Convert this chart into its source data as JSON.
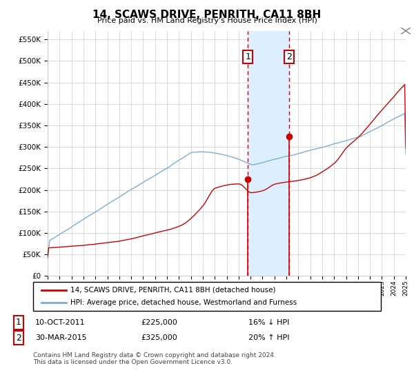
{
  "title": "14, SCAWS DRIVE, PENRITH, CA11 8BH",
  "subtitle": "Price paid vs. HM Land Registry's House Price Index (HPI)",
  "legend_line1": "14, SCAWS DRIVE, PENRITH, CA11 8BH (detached house)",
  "legend_line2": "HPI: Average price, detached house, Westmorland and Furness",
  "annotation1_date": "10-OCT-2011",
  "annotation1_price": 225000,
  "annotation1_note": "16% ↓ HPI",
  "annotation2_date": "30-MAR-2015",
  "annotation2_price": 325000,
  "annotation2_note": "20% ↑ HPI",
  "footer": "Contains HM Land Registry data © Crown copyright and database right 2024.\nThis data is licensed under the Open Government Licence v3.0.",
  "hpi_color": "#7aadd4",
  "price_color": "#cc0000",
  "dashed_line_color": "#cc0000",
  "shade_color": "#ddeeff",
  "grid_color": "#cccccc",
  "background_color": "#ffffff",
  "ylim": [
    0,
    570000
  ],
  "yticks": [
    0,
    50000,
    100000,
    150000,
    200000,
    250000,
    300000,
    350000,
    400000,
    450000,
    500000,
    550000
  ],
  "start_year": 1995,
  "end_year": 2025,
  "event1_year": 2011.78,
  "event2_year": 2015.24
}
